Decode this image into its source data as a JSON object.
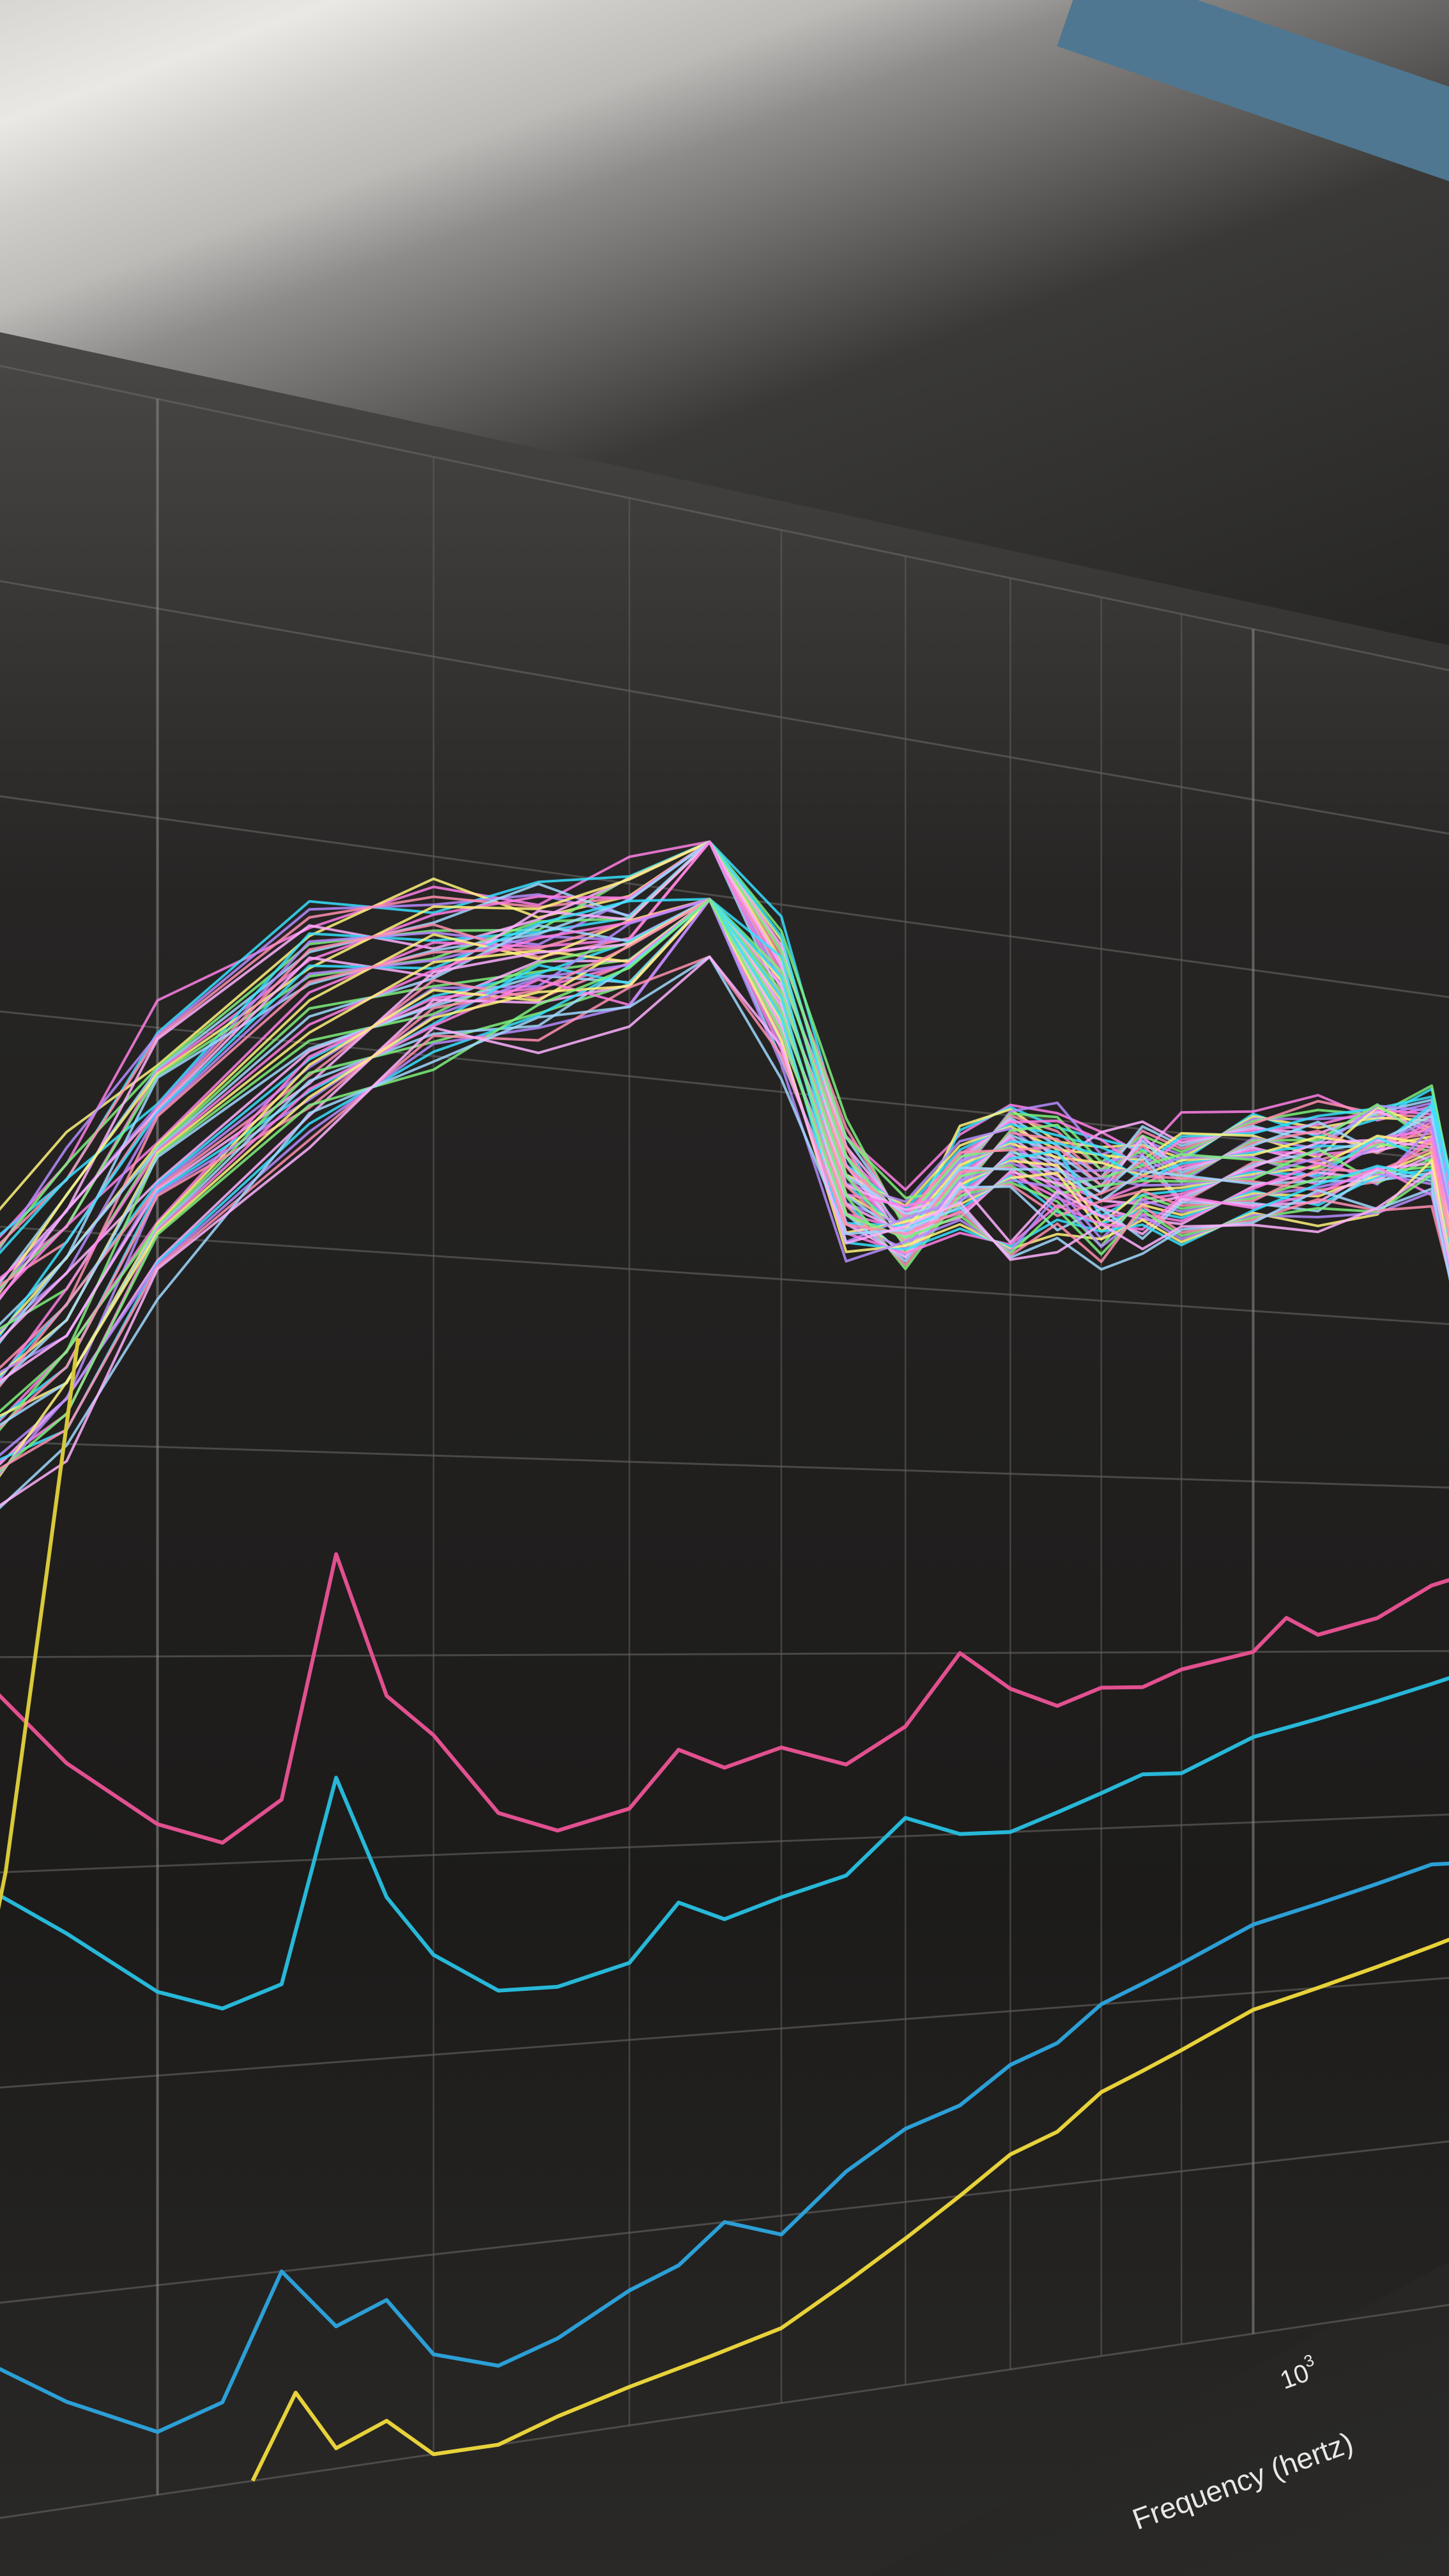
{
  "chart_data": {
    "type": "line",
    "title": "",
    "xlabel": "Frequency (hertz)",
    "ylabel": "",
    "xscale": "log",
    "xlim": [
      150,
      1400
    ],
    "ylim": [
      0,
      100
    ],
    "grid": true,
    "x_tick_labels": [
      {
        "value": 1000,
        "base": "10",
        "exp": "3"
      }
    ],
    "bundle": {
      "description_colors": [
        "#ff7fe6",
        "#36e0ff",
        "#fff27a",
        "#b68cff",
        "#7df07a",
        "#ff8fb0",
        "#9fd8ff",
        "#ffb0ff"
      ],
      "count": 48,
      "upper_profile": [
        [
          150,
          58
        ],
        [
          175,
          64
        ],
        [
          200,
          70
        ],
        [
          250,
          76
        ],
        [
          300,
          78
        ],
        [
          350,
          79
        ],
        [
          400,
          80
        ],
        [
          450,
          83
        ],
        [
          500,
          78
        ],
        [
          550,
          68
        ],
        [
          600,
          64
        ],
        [
          650,
          68
        ],
        [
          700,
          71
        ],
        [
          750,
          70
        ],
        [
          800,
          69
        ],
        [
          850,
          70
        ],
        [
          900,
          70
        ],
        [
          1000,
          71
        ],
        [
          1100,
          72
        ],
        [
          1200,
          73
        ],
        [
          1300,
          74
        ],
        [
          1400,
          60
        ]
      ],
      "lower_profile": [
        [
          150,
          46
        ],
        [
          175,
          50
        ],
        [
          200,
          58
        ],
        [
          250,
          66
        ],
        [
          300,
          70
        ],
        [
          350,
          72
        ],
        [
          400,
          74
        ],
        [
          450,
          78
        ],
        [
          500,
          72
        ],
        [
          550,
          62
        ],
        [
          600,
          62
        ],
        [
          650,
          64
        ],
        [
          700,
          63
        ],
        [
          750,
          64
        ],
        [
          800,
          63
        ],
        [
          850,
          64
        ],
        [
          900,
          64
        ],
        [
          1000,
          65
        ],
        [
          1100,
          66
        ],
        [
          1200,
          67
        ],
        [
          1300,
          68
        ],
        [
          1400,
          54
        ]
      ]
    },
    "series": [
      {
        "color": "#e2508f",
        "values": [
          [
            150,
            40
          ],
          [
            175,
            35
          ],
          [
            200,
            32
          ],
          [
            220,
            31
          ],
          [
            240,
            33
          ],
          [
            260,
            45
          ],
          [
            280,
            38
          ],
          [
            300,
            36
          ],
          [
            330,
            32
          ],
          [
            360,
            31
          ],
          [
            400,
            32
          ],
          [
            430,
            35
          ],
          [
            460,
            34
          ],
          [
            500,
            35
          ],
          [
            550,
            34
          ],
          [
            600,
            36
          ],
          [
            650,
            40
          ],
          [
            700,
            38
          ],
          [
            750,
            37
          ],
          [
            800,
            38
          ],
          [
            850,
            38
          ],
          [
            900,
            39
          ],
          [
            1000,
            40
          ],
          [
            1050,
            42
          ],
          [
            1100,
            41
          ],
          [
            1200,
            42
          ],
          [
            1300,
            44
          ],
          [
            1400,
            45
          ]
        ]
      },
      {
        "color": "#27b8d8",
        "values": [
          [
            150,
            30
          ],
          [
            175,
            27
          ],
          [
            200,
            24
          ],
          [
            220,
            23
          ],
          [
            240,
            24
          ],
          [
            260,
            34
          ],
          [
            280,
            28
          ],
          [
            300,
            25
          ],
          [
            330,
            23
          ],
          [
            360,
            23
          ],
          [
            400,
            24
          ],
          [
            430,
            27
          ],
          [
            460,
            26
          ],
          [
            500,
            27
          ],
          [
            550,
            28
          ],
          [
            600,
            31
          ],
          [
            650,
            30
          ],
          [
            700,
            30
          ],
          [
            750,
            31
          ],
          [
            800,
            32
          ],
          [
            850,
            33
          ],
          [
            900,
            33
          ],
          [
            1000,
            35
          ],
          [
            1100,
            36
          ],
          [
            1200,
            37
          ],
          [
            1300,
            38
          ],
          [
            1400,
            39
          ]
        ]
      },
      {
        "color": "#2c9fd6",
        "values": [
          [
            150,
            8
          ],
          [
            175,
            5
          ],
          [
            200,
            3
          ],
          [
            220,
            4
          ],
          [
            240,
            10
          ],
          [
            260,
            7
          ],
          [
            280,
            8
          ],
          [
            300,
            5
          ],
          [
            330,
            4
          ],
          [
            360,
            5
          ],
          [
            400,
            7
          ],
          [
            430,
            8
          ],
          [
            460,
            10
          ],
          [
            500,
            9
          ],
          [
            550,
            12
          ],
          [
            600,
            14
          ],
          [
            650,
            15
          ],
          [
            700,
            17
          ],
          [
            750,
            18
          ],
          [
            800,
            20
          ],
          [
            850,
            21
          ],
          [
            900,
            22
          ],
          [
            1000,
            24
          ],
          [
            1100,
            25
          ],
          [
            1200,
            26
          ],
          [
            1300,
            27
          ],
          [
            1400,
            27
          ]
        ]
      },
      {
        "color": "#e8d23a",
        "values": [
          [
            230,
            0
          ],
          [
            245,
            4
          ],
          [
            260,
            1
          ],
          [
            280,
            2
          ],
          [
            300,
            0
          ],
          [
            330,
            0
          ],
          [
            360,
            1
          ],
          [
            400,
            2
          ],
          [
            450,
            3
          ],
          [
            500,
            4
          ],
          [
            550,
            6
          ],
          [
            600,
            8
          ],
          [
            650,
            10
          ],
          [
            700,
            12
          ],
          [
            750,
            13
          ],
          [
            800,
            15
          ],
          [
            850,
            16
          ],
          [
            900,
            17
          ],
          [
            1000,
            19
          ],
          [
            1100,
            20
          ],
          [
            1200,
            21
          ],
          [
            1300,
            22
          ],
          [
            1400,
            23
          ]
        ]
      },
      {
        "color": "#d7c93a",
        "values": [
          [
            150,
            20
          ],
          [
            160,
            30
          ],
          [
            170,
            44
          ],
          [
            178,
            55
          ]
        ]
      }
    ]
  }
}
